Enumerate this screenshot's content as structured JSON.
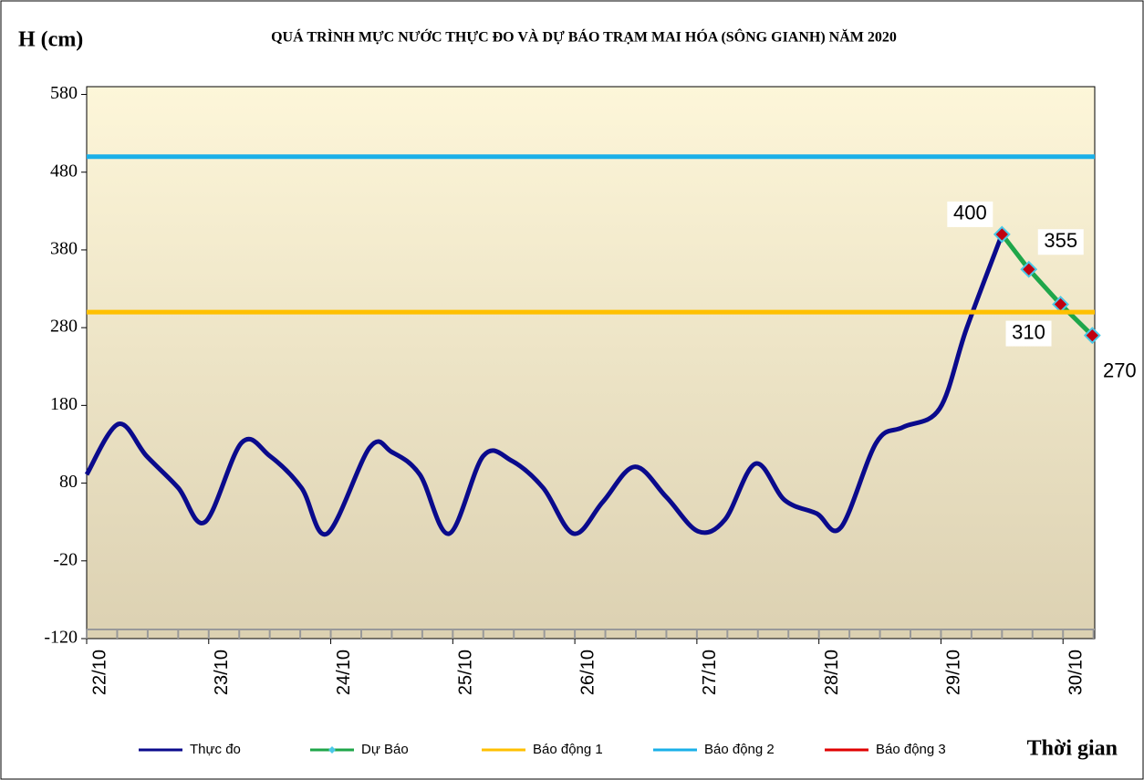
{
  "chart_data": {
    "type": "line",
    "title": "QUÁ TRÌNH MỰC NƯỚC THỰC ĐO VÀ DỰ BÁO TRẠM MAI HÓA (SÔNG GIANH) NĂM 2020",
    "y_label": "H (cm)",
    "x_label": "Thời gian",
    "ylim": [
      -120,
      590
    ],
    "yticks": [
      -120,
      -20,
      80,
      180,
      280,
      380,
      480,
      580
    ],
    "xlim": [
      0,
      8.26
    ],
    "xticks": [
      {
        "value": 0,
        "label": "22/10"
      },
      {
        "value": 1,
        "label": "23/10"
      },
      {
        "value": 2,
        "label": "24/10"
      },
      {
        "value": 3,
        "label": "25/10"
      },
      {
        "value": 4,
        "label": "26/10"
      },
      {
        "value": 5,
        "label": "27/10"
      },
      {
        "value": 6,
        "label": "28/10"
      },
      {
        "value": 7,
        "label": "29/10"
      },
      {
        "value": 8,
        "label": "30/10"
      }
    ],
    "series": [
      {
        "name": "Thực đo",
        "color": "#0a0a8c",
        "x": [
          0,
          0.26,
          0.49,
          0.75,
          0.97,
          1.27,
          1.5,
          1.76,
          1.97,
          2.32,
          2.5,
          2.73,
          2.97,
          3.25,
          3.48,
          3.74,
          3.99,
          4.23,
          4.49,
          4.75,
          5.01,
          5.23,
          5.48,
          5.72,
          5.98,
          6.18,
          6.47,
          6.69,
          6.99,
          7.21,
          7.5
        ],
        "values": [
          91,
          156,
          115,
          74,
          30,
          132,
          115,
          74,
          15,
          126,
          120,
          91,
          15,
          115,
          109,
          74,
          15,
          56,
          101,
          62,
          18,
          33,
          105,
          58,
          41,
          23,
          132,
          152,
          176,
          279,
          400
        ]
      },
      {
        "name": "Dự Báo",
        "color": "#1fa64a",
        "marker_color": "#c00010",
        "marker_edge": "#4ac8e8",
        "x": [
          7.5,
          7.72,
          7.98,
          8.24
        ],
        "values": [
          400,
          355,
          310,
          270
        ],
        "labels": true
      },
      {
        "name": "Báo động 1",
        "color": "#ffc000",
        "value": 300
      },
      {
        "name": "Báo động 2",
        "color": "#1ab0e8",
        "value": 500
      },
      {
        "name": "Báo động 3",
        "color": "#e00000"
      }
    ]
  }
}
